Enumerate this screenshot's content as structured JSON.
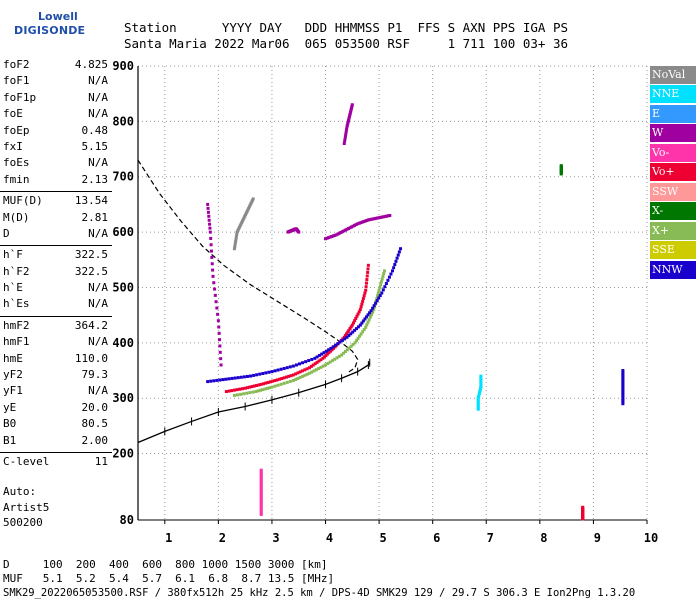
{
  "logo": {
    "line1": "Lowell",
    "line2": "DIGISONDE"
  },
  "header": {
    "row1": "Station      YYYY DAY   DDD HHMMSS P1  FFS S AXN PPS IGA PS",
    "row2": "Santa Maria 2022 Mar06  065 053500 RSF     1 711 100 03+ 36"
  },
  "params": {
    "group1": [
      {
        "k": "foF2",
        "v": "4.825"
      },
      {
        "k": "foF1",
        "v": "N/A"
      },
      {
        "k": "foF1p",
        "v": "N/A"
      },
      {
        "k": "foE",
        "v": "N/A"
      },
      {
        "k": "foEp",
        "v": "0.48"
      },
      {
        "k": "fxI",
        "v": "5.15"
      },
      {
        "k": "foEs",
        "v": "N/A"
      },
      {
        "k": "fmin",
        "v": "2.13"
      }
    ],
    "group2": [
      {
        "k": "MUF(D)",
        "v": "13.54"
      },
      {
        "k": "M(D)",
        "v": "2.81"
      },
      {
        "k": "D",
        "v": "N/A"
      }
    ],
    "group3": [
      {
        "k": "h`F",
        "v": "322.5"
      },
      {
        "k": "h`F2",
        "v": "322.5"
      },
      {
        "k": "h`E",
        "v": "N/A"
      },
      {
        "k": "h`Es",
        "v": "N/A"
      }
    ],
    "group4": [
      {
        "k": "hmF2",
        "v": "364.2"
      },
      {
        "k": "hmF1",
        "v": "N/A"
      },
      {
        "k": "hmE",
        "v": "110.0"
      },
      {
        "k": "yF2",
        "v": "79.3"
      },
      {
        "k": "yF1",
        "v": "N/A"
      },
      {
        "k": "yE",
        "v": "20.0"
      },
      {
        "k": "B0",
        "v": "80.5"
      },
      {
        "k": "B1",
        "v": "2.00"
      }
    ],
    "group5": [
      {
        "k": "C-level",
        "v": "11"
      }
    ]
  },
  "auto": {
    "line1": "Auto:",
    "line2": "Artist5",
    "line3": "500200"
  },
  "legend": [
    {
      "label": "NoVal",
      "color": "#8a8a8a"
    },
    {
      "label": "NNE",
      "color": "#00e0ff"
    },
    {
      "label": "E",
      "color": "#3399ff"
    },
    {
      "label": "W",
      "color": "#a000a0"
    },
    {
      "label": "Vo-",
      "color": "#ff33aa"
    },
    {
      "label": "Vo+",
      "color": "#ee0033"
    },
    {
      "label": "SSW",
      "color": "#ff9999"
    },
    {
      "label": "X-",
      "color": "#007700"
    },
    {
      "label": "X+",
      "color": "#88bb55"
    },
    {
      "label": "SSE",
      "color": "#cccc00"
    },
    {
      "label": "NNW",
      "color": "#1a00cc"
    }
  ],
  "footer": {
    "line1": "D     100  200  400  600  800 1000 1500 3000 [km]",
    "line2": "MUF   5.1  5.2  5.4  5.7  6.1  6.8  8.7 13.5 [MHz]",
    "fileline": "SMK29_2022065053500.RSF / 380fx512h 25 kHz 2.5 km / DPS-4D SMK29 129 / 29.7 S 306.3 E Ion2Png 1.3.20"
  },
  "chart_data": {
    "type": "scatter",
    "xlabel": "",
    "ylabel": "",
    "xlim": [
      0.5,
      10
    ],
    "ylim": [
      80,
      900
    ],
    "xticks": [
      1,
      2,
      3,
      4,
      5,
      6,
      7,
      8,
      9,
      10
    ],
    "yticks": [
      80,
      200,
      300,
      400,
      500,
      600,
      700,
      800,
      900
    ],
    "grid": "dotted",
    "traces": [
      {
        "series": "Vo+",
        "color": "#ee0033",
        "x": [
          2.15,
          2.5,
          2.8,
          3.1,
          3.4,
          3.7,
          3.95,
          4.15,
          4.35,
          4.5,
          4.65,
          4.75,
          4.8
        ],
        "y": [
          312,
          318,
          325,
          333,
          342,
          355,
          372,
          390,
          410,
          432,
          460,
          495,
          540
        ]
      },
      {
        "series": "X+",
        "color": "#88bb55",
        "x": [
          2.3,
          2.7,
          3.0,
          3.4,
          3.7,
          4.0,
          4.3,
          4.55,
          4.75,
          4.9,
          5.0,
          5.1
        ],
        "y": [
          305,
          312,
          320,
          332,
          345,
          360,
          378,
          400,
          428,
          460,
          495,
          530
        ]
      },
      {
        "series": "NNW",
        "color": "#1a00cc",
        "x": [
          1.8,
          2.2,
          2.6,
          3.0,
          3.4,
          3.8,
          4.1,
          4.4,
          4.65,
          4.85,
          5.05,
          5.25,
          5.4
        ],
        "y": [
          330,
          335,
          340,
          348,
          358,
          372,
          390,
          410,
          432,
          458,
          490,
          530,
          570
        ]
      },
      {
        "series": "W",
        "color": "#a000a0",
        "x": [
          4.0,
          4.2,
          4.4,
          4.6,
          4.8,
          5.0,
          5.2
        ],
        "y": [
          588,
          595,
          605,
          615,
          622,
          626,
          630
        ]
      },
      {
        "series": "W",
        "color": "#a000a0",
        "x": [
          1.8,
          1.85,
          1.9,
          2.0,
          2.05
        ],
        "y": [
          650,
          600,
          520,
          440,
          360
        ]
      },
      {
        "series": "NoVal",
        "color": "#8a8a8a",
        "x": [
          2.3,
          2.35,
          2.45,
          2.55,
          2.65
        ],
        "y": [
          570,
          600,
          620,
          640,
          660
        ]
      },
      {
        "series": "NNE",
        "color": "#00e0ff",
        "x": [
          6.85,
          6.85,
          6.9,
          6.9
        ],
        "y": [
          280,
          300,
          320,
          340
        ]
      },
      {
        "series": "NNW",
        "color": "#1a00cc",
        "x": [
          9.55,
          9.55,
          9.55,
          9.55
        ],
        "y": [
          290,
          310,
          330,
          350
        ]
      },
      {
        "series": "X-",
        "color": "#007700",
        "x": [
          8.4,
          8.4,
          8.4
        ],
        "y": [
          705,
          712,
          720
        ]
      },
      {
        "series": "Vo-",
        "color": "#ff33aa",
        "x": [
          2.8,
          2.8,
          2.8,
          2.8,
          2.8
        ],
        "y": [
          90,
          110,
          130,
          150,
          170
        ]
      },
      {
        "series": "Vo+",
        "color": "#ee0033",
        "x": [
          8.8,
          8.8,
          8.8,
          8.8
        ],
        "y": [
          82,
          88,
          95,
          103
        ]
      },
      {
        "series": "W",
        "color": "#a000a0",
        "x": [
          4.35,
          4.4,
          4.45,
          4.5
        ],
        "y": [
          760,
          790,
          810,
          830
        ]
      },
      {
        "series": "W",
        "color": "#a000a0",
        "x": [
          3.3,
          3.35,
          3.4,
          3.45,
          3.5
        ],
        "y": [
          600,
          602,
          604,
          606,
          600
        ]
      }
    ],
    "profile": {
      "x": [
        0.5,
        1.0,
        1.5,
        2.0,
        2.5,
        3.0,
        3.5,
        4.0,
        4.3,
        4.6,
        4.8,
        4.825
      ],
      "y": [
        220,
        240,
        258,
        275,
        285,
        297,
        310,
        325,
        336,
        348,
        360,
        364.2
      ]
    },
    "dashed_curve": {
      "x": [
        0.5,
        0.9,
        1.3,
        1.7,
        2.1,
        2.6,
        3.1,
        3.6,
        4.0,
        4.3,
        4.5,
        4.6,
        4.55,
        4.4
      ],
      "y": [
        730,
        670,
        620,
        575,
        540,
        505,
        475,
        445,
        420,
        400,
        385,
        370,
        355,
        345
      ]
    }
  }
}
